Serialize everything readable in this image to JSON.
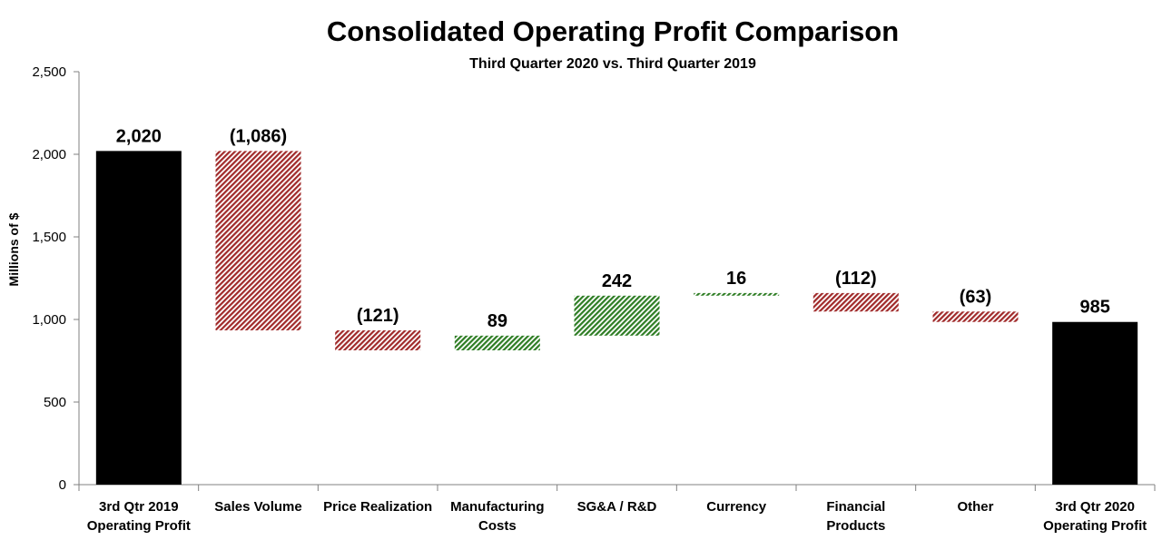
{
  "chart_data": {
    "type": "bar",
    "subtype": "waterfall",
    "title": "Consolidated Operating Profit Comparison",
    "subtitle": "Third Quarter 2020 vs. Third Quarter 2019",
    "xlabel": "",
    "ylabel": "Millions of $",
    "ylim": [
      0,
      2500
    ],
    "yticks": [
      0,
      500,
      1000,
      1500,
      2000,
      2500
    ],
    "ytick_labels": [
      "0",
      "500",
      "1,000",
      "1,500",
      "2,000",
      "2,500"
    ],
    "grid": false,
    "legend": "none",
    "categories": [
      [
        "3rd Qtr 2019",
        "Operating Profit"
      ],
      [
        "Sales Volume"
      ],
      [
        "Price Realization"
      ],
      [
        "Manufacturing",
        "Costs"
      ],
      [
        "SG&A / R&D"
      ],
      [
        "Currency"
      ],
      [
        "Financial",
        "Products"
      ],
      [
        "Other"
      ],
      [
        "3rd Qtr 2020",
        "Operating Profit"
      ]
    ],
    "values": [
      2020,
      -1086,
      -121,
      89,
      242,
      16,
      -112,
      -63,
      985
    ],
    "kinds": [
      "total",
      "delta",
      "delta",
      "delta",
      "delta",
      "delta",
      "delta",
      "delta",
      "total"
    ],
    "value_labels": [
      "2,020",
      "(1,086)",
      "(121)",
      "89",
      "242",
      "16",
      "(112)",
      "(63)",
      "985"
    ],
    "colors": {
      "total": "#000000",
      "decrease": "#a02a2a",
      "increase": "#2e7d24",
      "axis": "#808080"
    }
  }
}
